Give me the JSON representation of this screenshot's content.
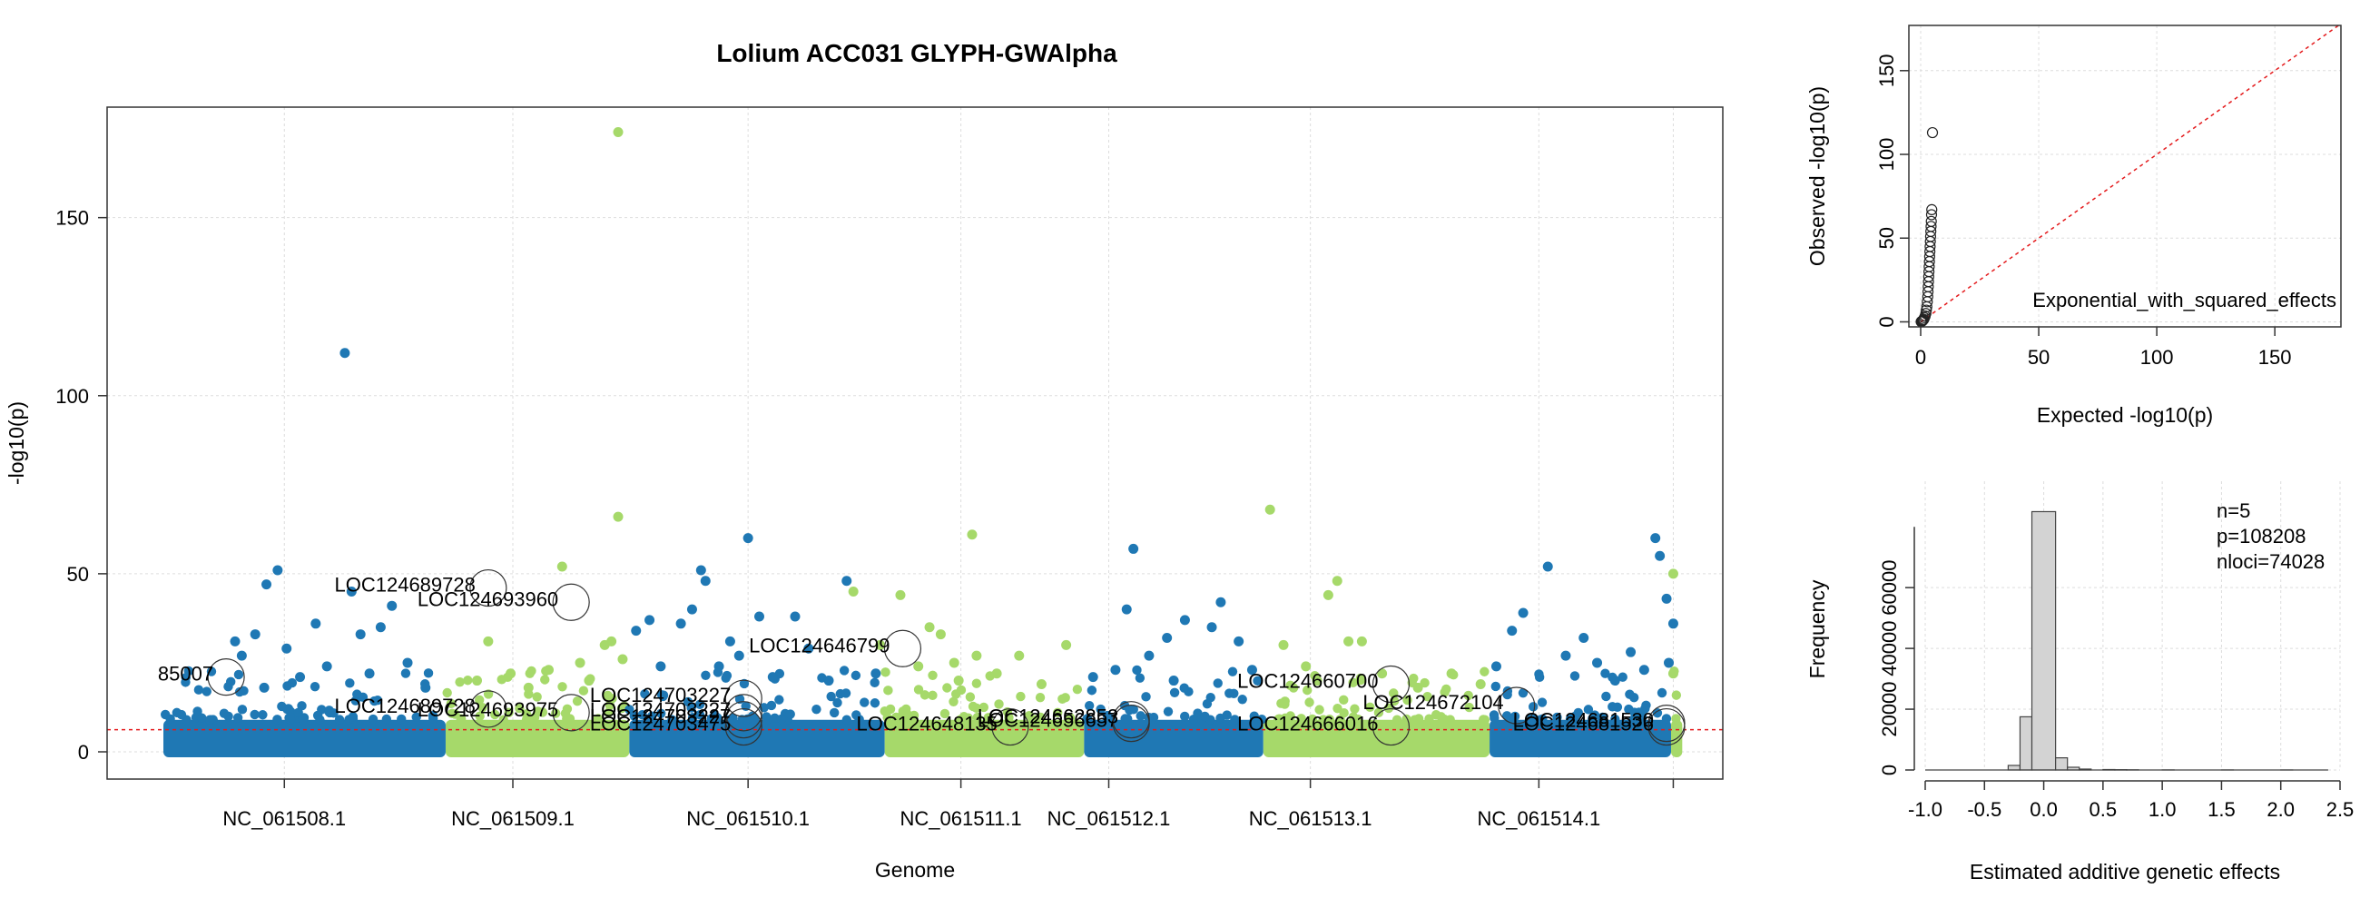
{
  "manhattan": {
    "title": "Lolium ACC031 GLYPH-GWAlpha",
    "xlabel": "Genome",
    "ylabel": "-log10(p)"
  },
  "qq": {
    "xlabel": "Expected -log10(p)",
    "ylabel": "Observed -log10(p)",
    "legend": "Exponential_with_squared_effects"
  },
  "hist": {
    "xlabel": "Estimated additive genetic effects",
    "ylabel": "Frequency",
    "stats": [
      "n=5",
      "p=108208",
      "nloci=74028"
    ]
  },
  "chart_data": [
    {
      "type": "scatter",
      "name": "manhattan",
      "title": "Lolium ACC031 GLYPH-GWAlpha",
      "xlabel": "Genome",
      "ylabel": "-log10(p)",
      "ylim": [
        -4,
        180
      ],
      "yticks": [
        0,
        50,
        100,
        150
      ],
      "grid": true,
      "colors": {
        "blue": "#1f78b4",
        "green": "#a6d96a"
      },
      "threshold": 6.2,
      "chromosomes": [
        {
          "name": "NC_061508.1",
          "start": 0,
          "end": 1.26,
          "color": "blue",
          "tick": 0.54
        },
        {
          "name": "NC_061509.1",
          "start": 1.26,
          "end": 2.08,
          "color": "green",
          "tick": 1.56
        },
        {
          "name": "NC_061510.1",
          "start": 2.08,
          "end": 3.22,
          "color": "blue",
          "tick": 2.61
        },
        {
          "name": "NC_061511.1",
          "start": 3.22,
          "end": 4.11,
          "color": "green",
          "tick": 3.56
        },
        {
          "name": "NC_061512.1",
          "start": 4.11,
          "end": 4.91,
          "color": "blue",
          "tick": 4.22
        },
        {
          "name": "NC_061513.1",
          "start": 4.91,
          "end": 5.92,
          "color": "green",
          "tick": 5.12
        },
        {
          "name": "NC_061514.1",
          "start": 5.92,
          "end": 6.73,
          "color": "blue",
          "tick": 6.14
        },
        {
          "name": "",
          "start": 6.73,
          "end": 6.78,
          "color": "green",
          "tick": 6.74
        }
      ],
      "points": [
        {
          "x": 0.32,
          "y": 31,
          "c": "blue"
        },
        {
          "x": 0.35,
          "y": 27,
          "c": "blue"
        },
        {
          "x": 0.41,
          "y": 33,
          "c": "blue"
        },
        {
          "x": 0.46,
          "y": 47,
          "c": "blue"
        },
        {
          "x": 0.51,
          "y": 51,
          "c": "blue"
        },
        {
          "x": 0.55,
          "y": 29,
          "c": "blue"
        },
        {
          "x": 0.68,
          "y": 36,
          "c": "blue"
        },
        {
          "x": 0.73,
          "y": 24,
          "c": "blue"
        },
        {
          "x": 0.81,
          "y": 112,
          "c": "blue"
        },
        {
          "x": 0.84,
          "y": 45,
          "c": "blue"
        },
        {
          "x": 0.88,
          "y": 33,
          "c": "blue"
        },
        {
          "x": 0.97,
          "y": 35,
          "c": "blue"
        },
        {
          "x": 1.02,
          "y": 41,
          "c": "blue"
        },
        {
          "x": 1.09,
          "y": 25,
          "c": "blue"
        },
        {
          "x": 0.61,
          "y": 21,
          "c": "blue"
        },
        {
          "x": 1.17,
          "y": 18,
          "c": "blue"
        },
        {
          "x": 0.45,
          "y": 18,
          "c": "blue"
        },
        {
          "x": 0.92,
          "y": 22,
          "c": "blue"
        },
        {
          "x": 1.4,
          "y": 20,
          "c": "green"
        },
        {
          "x": 1.45,
          "y": 31,
          "c": "green"
        },
        {
          "x": 1.55,
          "y": 22,
          "c": "green"
        },
        {
          "x": 1.63,
          "y": 18,
          "c": "green"
        },
        {
          "x": 1.72,
          "y": 23,
          "c": "green"
        },
        {
          "x": 1.78,
          "y": 52,
          "c": "green"
        },
        {
          "x": 1.9,
          "y": 20,
          "c": "green"
        },
        {
          "x": 1.97,
          "y": 30,
          "c": "green"
        },
        {
          "x": 2.0,
          "y": 31,
          "c": "green"
        },
        {
          "x": 2.03,
          "y": 174,
          "c": "green"
        },
        {
          "x": 2.03,
          "y": 66,
          "c": "green"
        },
        {
          "x": 1.86,
          "y": 25,
          "c": "green"
        },
        {
          "x": 2.05,
          "y": 26,
          "c": "green"
        },
        {
          "x": 2.11,
          "y": 34,
          "c": "blue"
        },
        {
          "x": 2.17,
          "y": 37,
          "c": "blue"
        },
        {
          "x": 2.22,
          "y": 24,
          "c": "blue"
        },
        {
          "x": 2.31,
          "y": 36,
          "c": "blue"
        },
        {
          "x": 2.36,
          "y": 40,
          "c": "blue"
        },
        {
          "x": 2.4,
          "y": 51,
          "c": "blue"
        },
        {
          "x": 2.42,
          "y": 48,
          "c": "blue"
        },
        {
          "x": 2.48,
          "y": 24,
          "c": "blue"
        },
        {
          "x": 2.53,
          "y": 31,
          "c": "blue"
        },
        {
          "x": 2.57,
          "y": 27,
          "c": "blue"
        },
        {
          "x": 2.61,
          "y": 60,
          "c": "blue"
        },
        {
          "x": 2.66,
          "y": 38,
          "c": "blue"
        },
        {
          "x": 2.72,
          "y": 21,
          "c": "blue"
        },
        {
          "x": 2.82,
          "y": 38,
          "c": "blue"
        },
        {
          "x": 2.88,
          "y": 29,
          "c": "blue"
        },
        {
          "x": 2.97,
          "y": 20,
          "c": "blue"
        },
        {
          "x": 3.05,
          "y": 48,
          "c": "blue"
        },
        {
          "x": 3.18,
          "y": 22,
          "c": "blue"
        },
        {
          "x": 3.08,
          "y": 45,
          "c": "green"
        },
        {
          "x": 3.2,
          "y": 30,
          "c": "green"
        },
        {
          "x": 3.29,
          "y": 44,
          "c": "green"
        },
        {
          "x": 3.37,
          "y": 24,
          "c": "green"
        },
        {
          "x": 3.42,
          "y": 35,
          "c": "green"
        },
        {
          "x": 3.47,
          "y": 33,
          "c": "green"
        },
        {
          "x": 3.53,
          "y": 25,
          "c": "green"
        },
        {
          "x": 3.61,
          "y": 61,
          "c": "green"
        },
        {
          "x": 3.63,
          "y": 27,
          "c": "green"
        },
        {
          "x": 3.72,
          "y": 22,
          "c": "green"
        },
        {
          "x": 3.82,
          "y": 27,
          "c": "green"
        },
        {
          "x": 3.92,
          "y": 19,
          "c": "green"
        },
        {
          "x": 4.03,
          "y": 30,
          "c": "green"
        },
        {
          "x": 3.55,
          "y": 20,
          "c": "green"
        },
        {
          "x": 4.15,
          "y": 21,
          "c": "blue"
        },
        {
          "x": 4.25,
          "y": 23,
          "c": "blue"
        },
        {
          "x": 4.3,
          "y": 40,
          "c": "blue"
        },
        {
          "x": 4.33,
          "y": 57,
          "c": "blue"
        },
        {
          "x": 4.4,
          "y": 27,
          "c": "blue"
        },
        {
          "x": 4.48,
          "y": 32,
          "c": "blue"
        },
        {
          "x": 4.56,
          "y": 37,
          "c": "blue"
        },
        {
          "x": 4.68,
          "y": 35,
          "c": "blue"
        },
        {
          "x": 4.72,
          "y": 42,
          "c": "blue"
        },
        {
          "x": 4.8,
          "y": 31,
          "c": "blue"
        },
        {
          "x": 4.86,
          "y": 23,
          "c": "blue"
        },
        {
          "x": 4.51,
          "y": 20,
          "c": "blue"
        },
        {
          "x": 4.94,
          "y": 68,
          "c": "green"
        },
        {
          "x": 5.0,
          "y": 30,
          "c": "green"
        },
        {
          "x": 5.1,
          "y": 24,
          "c": "green"
        },
        {
          "x": 5.2,
          "y": 44,
          "c": "green"
        },
        {
          "x": 5.24,
          "y": 48,
          "c": "green"
        },
        {
          "x": 5.29,
          "y": 31,
          "c": "green"
        },
        {
          "x": 5.35,
          "y": 31,
          "c": "green"
        },
        {
          "x": 5.44,
          "y": 22,
          "c": "green"
        },
        {
          "x": 5.6,
          "y": 18,
          "c": "green"
        },
        {
          "x": 5.75,
          "y": 22,
          "c": "green"
        },
        {
          "x": 5.88,
          "y": 19,
          "c": "green"
        },
        {
          "x": 5.15,
          "y": 20,
          "c": "green"
        },
        {
          "x": 5.95,
          "y": 24,
          "c": "blue"
        },
        {
          "x": 6.02,
          "y": 34,
          "c": "blue"
        },
        {
          "x": 6.07,
          "y": 39,
          "c": "blue"
        },
        {
          "x": 6.18,
          "y": 52,
          "c": "blue"
        },
        {
          "x": 6.26,
          "y": 27,
          "c": "blue"
        },
        {
          "x": 6.34,
          "y": 32,
          "c": "blue"
        },
        {
          "x": 6.4,
          "y": 25,
          "c": "blue"
        },
        {
          "x": 6.48,
          "y": 20,
          "c": "blue"
        },
        {
          "x": 6.55,
          "y": 28,
          "c": "blue"
        },
        {
          "x": 6.61,
          "y": 23,
          "c": "blue"
        },
        {
          "x": 6.66,
          "y": 60,
          "c": "blue"
        },
        {
          "x": 6.68,
          "y": 55,
          "c": "blue"
        },
        {
          "x": 6.71,
          "y": 43,
          "c": "blue"
        },
        {
          "x": 6.72,
          "y": 25,
          "c": "blue"
        },
        {
          "x": 6.74,
          "y": 50,
          "c": "green"
        },
        {
          "x": 6.74,
          "y": 36,
          "c": "blue"
        },
        {
          "x": 6.74,
          "y": 22,
          "c": "green"
        }
      ],
      "annotations": [
        {
          "label": "85007",
          "x": 0.28,
          "y": 21
        },
        {
          "label": "LOC124689728",
          "x": 1.45,
          "y": 46
        },
        {
          "label": "LOC124693960",
          "x": 1.82,
          "y": 42
        },
        {
          "label": "LOC124689728",
          "x": 1.45,
          "y": 12
        },
        {
          "label": "LOC124693975",
          "x": 1.82,
          "y": 11
        },
        {
          "label": "LOC124646799",
          "x": 3.3,
          "y": 29
        },
        {
          "label": "LOC124703227",
          "x": 2.59,
          "y": 15
        },
        {
          "label": "LOC124703227",
          "x": 2.59,
          "y": 11
        },
        {
          "label": "LOC124703227",
          "x": 2.59,
          "y": 9
        },
        {
          "label": "LOC124703475",
          "x": 2.59,
          "y": 7
        },
        {
          "label": "LOC124648135",
          "x": 3.78,
          "y": 7
        },
        {
          "label": "LOC124656657",
          "x": 4.32,
          "y": 8
        },
        {
          "label": "LOC124662853",
          "x": 4.32,
          "y": 9
        },
        {
          "label": "LOC124660700",
          "x": 5.48,
          "y": 19
        },
        {
          "label": "LOC124666016",
          "x": 5.48,
          "y": 7
        },
        {
          "label": "LOC124672104",
          "x": 6.04,
          "y": 13
        },
        {
          "label": "LOC124681530",
          "x": 6.71,
          "y": 8
        },
        {
          "label": "LOC124681526",
          "x": 6.71,
          "y": 7
        }
      ]
    },
    {
      "type": "scatter",
      "name": "qq",
      "xlabel": "Expected -log10(p)",
      "ylabel": "Observed -log10(p)",
      "xlim": [
        -5,
        178
      ],
      "ylim": [
        -3,
        177
      ],
      "xticks": [
        0,
        50,
        100,
        150
      ],
      "yticks": [
        0,
        50,
        100,
        150
      ],
      "legend": "Exponential_with_squared_effects",
      "points": [
        [
          0.2,
          0.1
        ],
        [
          0.5,
          0.3
        ],
        [
          0.8,
          0.6
        ],
        [
          1.0,
          1.0
        ],
        [
          1.3,
          1.5
        ],
        [
          1.6,
          2.5
        ],
        [
          1.9,
          3.5
        ],
        [
          2.2,
          5
        ],
        [
          2.4,
          7
        ],
        [
          2.6,
          9
        ],
        [
          2.8,
          12
        ],
        [
          3.0,
          15
        ],
        [
          3.1,
          18
        ],
        [
          3.2,
          21
        ],
        [
          3.3,
          24
        ],
        [
          3.4,
          27
        ],
        [
          3.5,
          30
        ],
        [
          3.6,
          33
        ],
        [
          3.7,
          36
        ],
        [
          3.8,
          39
        ],
        [
          3.9,
          42
        ],
        [
          4.0,
          45
        ],
        [
          4.1,
          48
        ],
        [
          4.2,
          51
        ],
        [
          4.3,
          54
        ],
        [
          4.4,
          57
        ],
        [
          4.5,
          60
        ],
        [
          4.6,
          64
        ],
        [
          4.7,
          67
        ],
        [
          5.0,
          113
        ]
      ],
      "reference_line": [
        [
          0,
          0
        ],
        [
          177,
          177
        ]
      ]
    },
    {
      "type": "bar",
      "name": "hist",
      "xlabel": "Estimated additive genetic effects",
      "ylabel": "Frequency",
      "xlim": [
        -1.0,
        2.5
      ],
      "ylim": [
        0,
        95000
      ],
      "xticks": [
        -1.0,
        -0.5,
        0.0,
        0.5,
        1.0,
        1.5,
        2.0,
        2.5
      ],
      "yticks": [
        0,
        20000,
        40000,
        60000
      ],
      "bin_width": 0.1,
      "bins": [
        {
          "start": -0.3,
          "count": 1500
        },
        {
          "start": -0.2,
          "count": 17500
        },
        {
          "start": -0.1,
          "count": 85000
        },
        {
          "start": 0.1,
          "count": 4000
        },
        {
          "start": 0.2,
          "count": 900
        },
        {
          "start": 0.3,
          "count": 300
        },
        {
          "start": 0.5,
          "count": 150
        },
        {
          "start": 0.6,
          "count": 100
        },
        {
          "start": 0.7,
          "count": 60
        },
        {
          "start": 1.0,
          "count": 30
        },
        {
          "start": 1.5,
          "count": 20
        },
        {
          "start": 2.0,
          "count": 15
        }
      ],
      "stats": [
        "n=5",
        "p=108208",
        "nloci=74028"
      ]
    }
  ]
}
